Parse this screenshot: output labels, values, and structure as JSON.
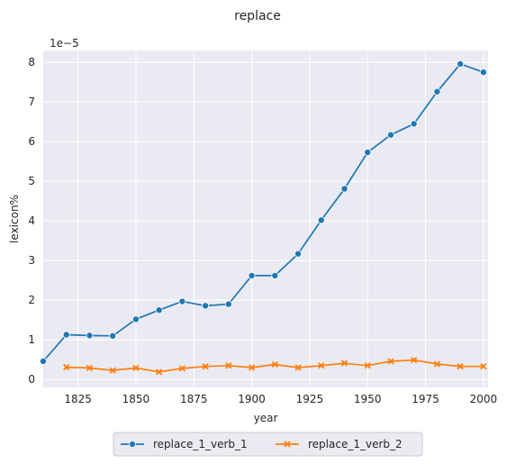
{
  "chart_data": {
    "type": "line",
    "title": "replace",
    "xlabel": "year",
    "ylabel": "lexicon%",
    "y_scale_text": "1e−5",
    "xlim": [
      1810,
      2002
    ],
    "ylim": [
      -0.2,
      8.3
    ],
    "x_ticks": [
      1825,
      1850,
      1875,
      1900,
      1925,
      1950,
      1975,
      2000
    ],
    "x_tick_labels": [
      "1825",
      "1850",
      "1875",
      "1900",
      "1925",
      "1950",
      "1975",
      "2000"
    ],
    "y_ticks": [
      0,
      1,
      2,
      3,
      4,
      5,
      6,
      7,
      8
    ],
    "y_tick_labels": [
      "0",
      "1",
      "2",
      "3",
      "4",
      "5",
      "6",
      "7",
      "8"
    ],
    "grid": true,
    "legend_position": "bottom-center",
    "x": [
      1810,
      1820,
      1830,
      1840,
      1850,
      1860,
      1870,
      1880,
      1890,
      1900,
      1910,
      1920,
      1930,
      1940,
      1950,
      1960,
      1970,
      1980,
      1990,
      2000
    ],
    "series": [
      {
        "name": "replace_1_verb_1",
        "color": "#1f77b4",
        "marker": "circle",
        "values": [
          0.46,
          1.13,
          1.11,
          1.1,
          1.52,
          1.75,
          1.97,
          1.86,
          1.9,
          2.62,
          2.62,
          3.17,
          4.02,
          4.81,
          5.73,
          6.17,
          6.45,
          7.26,
          7.96,
          7.75
        ]
      },
      {
        "name": "replace_1_verb_2",
        "color": "#ff7f0e",
        "marker": "x",
        "values": [
          null,
          0.31,
          0.29,
          0.23,
          0.29,
          0.19,
          0.28,
          0.33,
          0.35,
          0.3,
          0.38,
          0.3,
          0.35,
          0.41,
          0.35,
          0.46,
          0.49,
          0.39,
          0.33,
          0.33
        ]
      }
    ]
  }
}
